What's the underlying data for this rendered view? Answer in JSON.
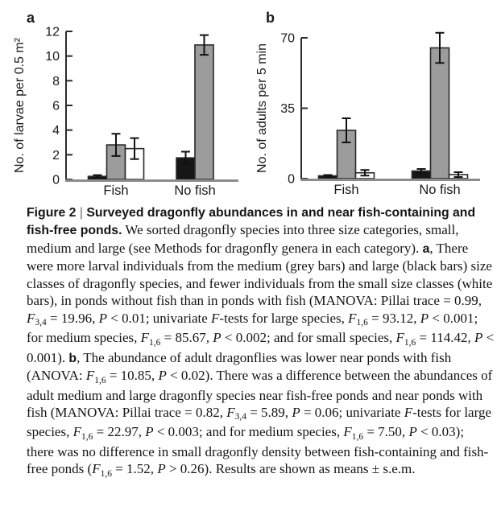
{
  "figure": {
    "name": "Figure 2",
    "panel_labels": [
      "a",
      "b"
    ]
  },
  "chart_data": [
    {
      "type": "bar",
      "panel": "a",
      "title": "",
      "xlabel": "",
      "ylabel": "No. of larvae per 0.5 m²",
      "categories": [
        "Fish",
        "No fish"
      ],
      "series": [
        {
          "name": "large",
          "legend": "black bars",
          "color": "#161616",
          "values": [
            0.25,
            1.75
          ],
          "errors": [
            0.1,
            0.5
          ]
        },
        {
          "name": "medium",
          "legend": "grey bars",
          "color": "#9c9c9c",
          "values": [
            2.8,
            10.9
          ],
          "errors": [
            0.9,
            0.8
          ]
        },
        {
          "name": "small",
          "legend": "white bars",
          "color": "#ffffff",
          "values": [
            2.5,
            0
          ],
          "errors": [
            0.85,
            0
          ]
        }
      ],
      "ylim": [
        0,
        12
      ],
      "yticks": [
        0,
        2,
        4,
        6,
        8,
        10,
        12
      ],
      "grid": false,
      "legend": "none",
      "error_type": "s.e.m."
    },
    {
      "type": "bar",
      "panel": "b",
      "title": "",
      "xlabel": "",
      "ylabel": "No. of adults per 5 min",
      "categories": [
        "Fish",
        "No fish"
      ],
      "series": [
        {
          "name": "large",
          "legend": "black bars",
          "color": "#161616",
          "values": [
            1.4,
            3.8
          ],
          "errors": [
            0.4,
            1.0
          ]
        },
        {
          "name": "medium",
          "legend": "grey bars",
          "color": "#9c9c9c",
          "values": [
            24,
            65
          ],
          "errors": [
            6,
            7.5
          ]
        },
        {
          "name": "small",
          "legend": "white bars",
          "color": "#ffffff",
          "values": [
            2.9,
            2.0
          ],
          "errors": [
            1.4,
            1.2
          ]
        }
      ],
      "ylim": [
        0,
        70
      ],
      "yticks": [
        0,
        35,
        70
      ],
      "grid": false,
      "legend": "none",
      "error_type": "s.e.m."
    }
  ],
  "caption": {
    "segments": [
      {
        "s": "b",
        "t": "Figure 2"
      },
      {
        "s": "pipe",
        "t": " | "
      },
      {
        "s": "b",
        "t": "Surveyed dragonfly abundances in and near fish-containing and fish-free ponds."
      },
      {
        "s": "r",
        "t": "  We sorted dragonfly species into three size categories, small, medium and large (see Methods for dragonfly genera in each category). "
      },
      {
        "s": "b",
        "t": "a"
      },
      {
        "s": "r",
        "t": ", There were more larval individuals from the medium (grey bars) and large (black bars) size classes of dragonfly species, and fewer individuals from the small size classes (white bars), in ponds without fish than in ponds with fish (MANOVA: Pillai trace = 0.99, "
      },
      {
        "s": "i",
        "t": "F"
      },
      {
        "s": "sub",
        "t": "3,4"
      },
      {
        "s": "r",
        "t": " = 19.96, "
      },
      {
        "s": "i",
        "t": "P"
      },
      {
        "s": "r",
        "t": " < 0.01; univariate "
      },
      {
        "s": "i",
        "t": "F"
      },
      {
        "s": "r",
        "t": "-tests for large species, "
      },
      {
        "s": "i",
        "t": "F"
      },
      {
        "s": "sub",
        "t": "1,6"
      },
      {
        "s": "r",
        "t": " = 93.12, "
      },
      {
        "s": "i",
        "t": "P"
      },
      {
        "s": "r",
        "t": " < 0.001; for medium species, "
      },
      {
        "s": "i",
        "t": "F"
      },
      {
        "s": "sub",
        "t": "1,6"
      },
      {
        "s": "r",
        "t": " = 85.67, "
      },
      {
        "s": "i",
        "t": "P"
      },
      {
        "s": "r",
        "t": " < 0.002; and for small species, "
      },
      {
        "s": "i",
        "t": "F"
      },
      {
        "s": "sub",
        "t": "1,6"
      },
      {
        "s": "r",
        "t": " = 114.42, "
      },
      {
        "s": "i",
        "t": "P"
      },
      {
        "s": "r",
        "t": " < 0.001). "
      },
      {
        "s": "b",
        "t": "b"
      },
      {
        "s": "r",
        "t": ", The abundance of adult dragonflies was lower near ponds with fish (ANOVA: "
      },
      {
        "s": "i",
        "t": "F"
      },
      {
        "s": "sub",
        "t": "1,6"
      },
      {
        "s": "r",
        "t": " = 10.85, "
      },
      {
        "s": "i",
        "t": "P"
      },
      {
        "s": "r",
        "t": " < 0.02). There was a difference between the abundances of adult medium and large dragonfly species near fish-free ponds and near ponds with fish (MANOVA: Pillai trace = 0.82, "
      },
      {
        "s": "i",
        "t": "F"
      },
      {
        "s": "sub",
        "t": "3,4"
      },
      {
        "s": "r",
        "t": " = 5.89, "
      },
      {
        "s": "i",
        "t": "P"
      },
      {
        "s": "r",
        "t": " = 0.06; univariate "
      },
      {
        "s": "i",
        "t": "F"
      },
      {
        "s": "r",
        "t": "-tests for large species, "
      },
      {
        "s": "i",
        "t": "F"
      },
      {
        "s": "sub",
        "t": "1,6"
      },
      {
        "s": "r",
        "t": " = 22.97, "
      },
      {
        "s": "i",
        "t": "P"
      },
      {
        "s": "r",
        "t": " < 0.003; and for medium species, "
      },
      {
        "s": "i",
        "t": "F"
      },
      {
        "s": "sub",
        "t": "1,6"
      },
      {
        "s": "r",
        "t": " = 7.50, "
      },
      {
        "s": "i",
        "t": "P"
      },
      {
        "s": "r",
        "t": " < 0.03); there was no difference in small dragonfly density between fish-containing and fish-free ponds ("
      },
      {
        "s": "i",
        "t": "F"
      },
      {
        "s": "sub",
        "t": "1,6"
      },
      {
        "s": "r",
        "t": " = 1.52, "
      },
      {
        "s": "i",
        "t": "P"
      },
      {
        "s": "r",
        "t": " > 0.26). Results are shown as means ± s.e.m."
      }
    ]
  },
  "colors": {
    "bar_black": "#161616",
    "bar_grey": "#9c9c9c",
    "bar_white": "#ffffff",
    "bar_outline": "#2a2a2a",
    "axis": "#2b2b2b",
    "baseline": "#8c8c8c",
    "error_bar": "#111111"
  }
}
